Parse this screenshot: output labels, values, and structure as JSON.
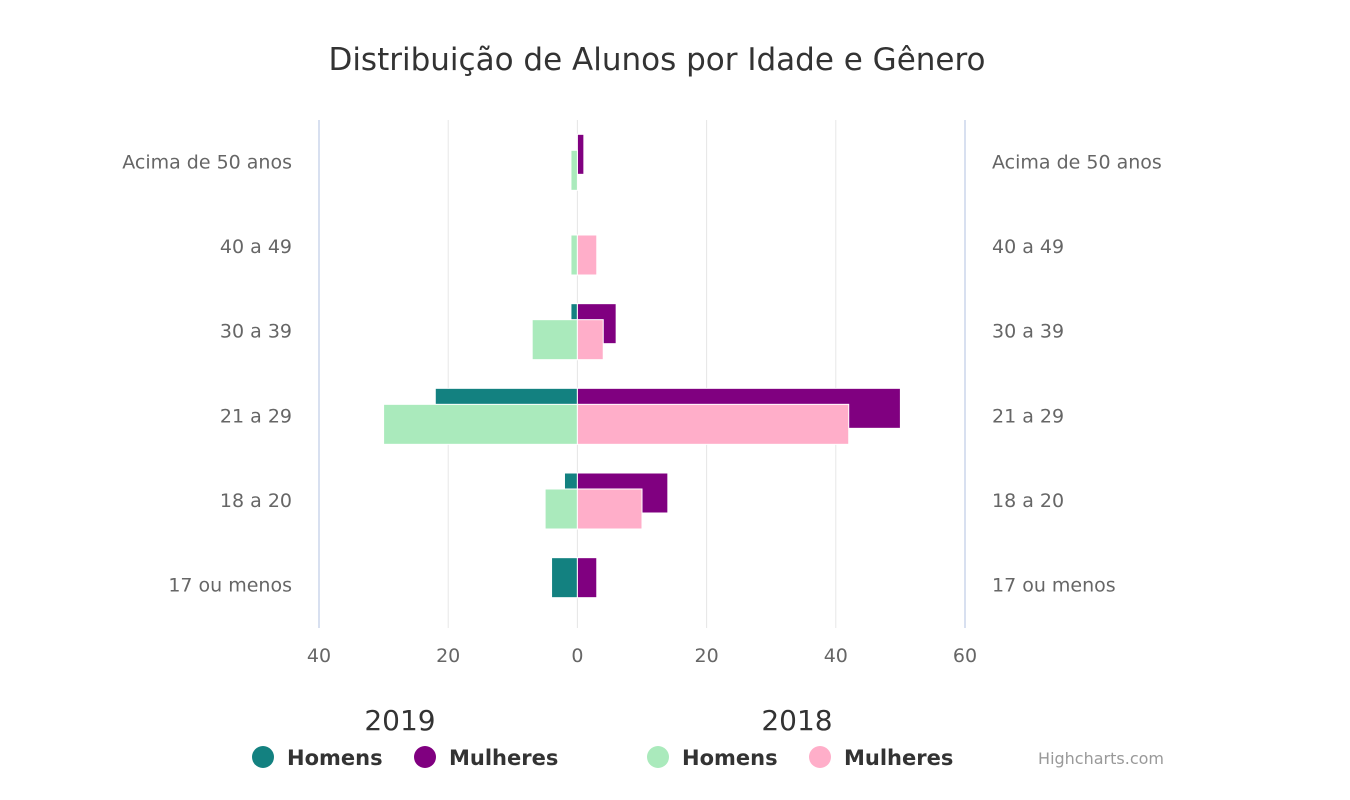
{
  "chart_data": {
    "type": "bar",
    "orientation": "horizontal",
    "title": "Distribuição de Alunos por Idade e Gênero",
    "categories": [
      "Acima de 50 anos",
      "40 a 49",
      "30 a 39",
      "21 a 29",
      "18 a 20",
      "17 ou menos"
    ],
    "x_axis": {
      "range": [
        -40,
        60
      ],
      "ticks": [
        -40,
        -20,
        0,
        20,
        40,
        60
      ],
      "tick_labels": [
        "40",
        "20",
        "0",
        "20",
        "40",
        "60"
      ]
    },
    "grid": true,
    "series": [
      {
        "name": "Homens",
        "group": "2019",
        "color": "#138180",
        "values": [
          0,
          0,
          -1,
          -22,
          -2,
          -4
        ]
      },
      {
        "name": "Mulheres",
        "group": "2019",
        "color": "#800080",
        "values": [
          1,
          0,
          6,
          50,
          14,
          3
        ]
      },
      {
        "name": "Homens",
        "group": "2018",
        "color": "#aaeabc",
        "values": [
          -1,
          -1,
          -7,
          -30,
          -5,
          0
        ]
      },
      {
        "name": "Mulheres",
        "group": "2018",
        "color": "#ffaec9",
        "values": [
          0,
          3,
          4,
          42,
          10,
          0
        ]
      }
    ],
    "legend": {
      "placement": "bottom",
      "groups": [
        "2019",
        "2018"
      ]
    },
    "credits": "Highcharts.com"
  }
}
